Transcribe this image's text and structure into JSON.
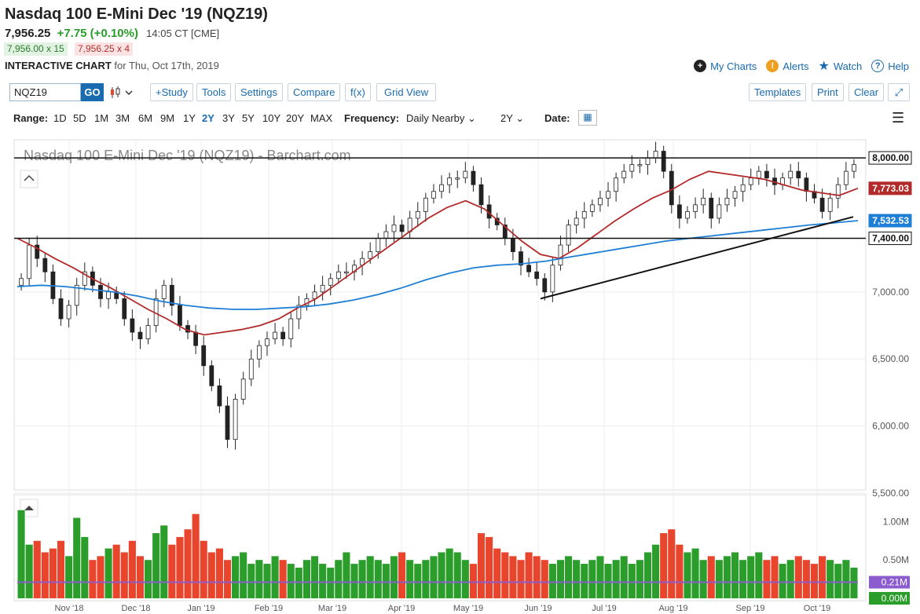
{
  "header": {
    "title": "Nasdaq 100 E-Mini Dec '19 (NQZ19)",
    "last": "7,956.25",
    "change": "+7.75 (+0.10%)",
    "time": "14:05 CT [CME]",
    "bid": "7,956.00 x 15",
    "ask": "7,956.25 x 4",
    "interactive_label": "INTERACTIVE CHART",
    "interactive_date": "for Thu, Oct 17th, 2019"
  },
  "toplinks": {
    "my_charts": "My Charts",
    "alerts": "Alerts",
    "watch": "Watch",
    "help": "Help"
  },
  "toolbar": {
    "symbol_value": "NQZ19",
    "go": "GO",
    "study": "+Study",
    "tools": "Tools",
    "settings": "Settings",
    "compare": "Compare",
    "fx": "f(x)",
    "grid_view": "Grid View",
    "templates": "Templates",
    "print": "Print",
    "clear": "Clear"
  },
  "rangebar": {
    "range_label": "Range:",
    "ranges": [
      "1D",
      "5D",
      "1M",
      "3M",
      "6M",
      "9M",
      "1Y",
      "2Y",
      "3Y",
      "5Y",
      "10Y",
      "20Y",
      "MAX"
    ],
    "active_range": "2Y",
    "frequency_label": "Frequency:",
    "frequency_value": "Daily Nearby",
    "period_value": "2Y",
    "date_label": "Date:"
  },
  "colors": {
    "up": "#2a9d2a",
    "down": "#e8452c",
    "ma_red": "#b22a2a",
    "ma_blue": "#1f7fd6",
    "vol_avg": "#8c5ccf",
    "link": "#1a6bb0"
  },
  "chart_data": {
    "type": "candlestick",
    "title": "Nasdaq 100 E-Mini Dec '19 (NQZ19) - Barchart.com",
    "price_axis": {
      "ylim": [
        5500,
        8100
      ],
      "ticks": [
        "8,000.00",
        "7,000.00",
        "6,500.00",
        "6,000.00",
        "5,500.00"
      ]
    },
    "x_labels": [
      "Nov '18",
      "Dec '18",
      "Jan '19",
      "Feb '19",
      "Mar '19",
      "Apr '19",
      "May '19",
      "Jun '19",
      "Jul '19",
      "Aug '19",
      "Sep '19",
      "Oct '19"
    ],
    "price_tags": [
      {
        "label": "8,000.00",
        "value": 8000,
        "style": "resistance"
      },
      {
        "label": "7,773.03",
        "value": 7773,
        "style": "ma_red"
      },
      {
        "label": "7,532.53",
        "value": 7532,
        "style": "ma_blue"
      },
      {
        "label": "7,400.00",
        "value": 7400,
        "style": "support"
      }
    ],
    "close_approx": [
      7100,
      7350,
      7250,
      7150,
      6950,
      6800,
      6900,
      7050,
      7150,
      7050,
      6950,
      7000,
      6950,
      6800,
      6700,
      6650,
      6750,
      6950,
      7050,
      6900,
      6750,
      6700,
      6600,
      6450,
      6300,
      6150,
      5900,
      6200,
      6350,
      6500,
      6600,
      6650,
      6700,
      6650,
      6800,
      6900,
      6950,
      7000,
      7050,
      7100,
      7150,
      7150,
      7200,
      7250,
      7300,
      7400,
      7450,
      7500,
      7450,
      7550,
      7600,
      7700,
      7750,
      7800,
      7850,
      7850,
      7900,
      7800,
      7650,
      7550,
      7500,
      7400,
      7300,
      7200,
      7150,
      7100,
      7000,
      7200,
      7350,
      7500,
      7550,
      7600,
      7650,
      7700,
      7750,
      7850,
      7900,
      7950,
      7950,
      8000,
      8050,
      7900,
      7650,
      7550,
      7600,
      7650,
      7700,
      7550,
      7650,
      7700,
      7750,
      7800,
      7850,
      7900,
      7850,
      7800,
      7850,
      7900,
      7850,
      7750,
      7700,
      7600,
      7700,
      7800,
      7900,
      7950
    ],
    "ma_red_approx": [
      7400,
      7330,
      7250,
      7180,
      7100,
      7030,
      6950,
      6870,
      6800,
      6720,
      6680,
      6700,
      6720,
      6750,
      6800,
      6880,
      6950,
      7050,
      7150,
      7250,
      7350,
      7450,
      7550,
      7630,
      7680,
      7620,
      7500,
      7380,
      7280,
      7250,
      7330,
      7430,
      7530,
      7620,
      7700,
      7760,
      7840,
      7900,
      7880,
      7860,
      7840,
      7800,
      7760,
      7740,
      7720,
      7773
    ],
    "ma_blue_approx": [
      7040,
      7050,
      7040,
      7020,
      7000,
      6970,
      6930,
      6900,
      6880,
      6870,
      6870,
      6880,
      6890,
      6910,
      6940,
      6980,
      7030,
      7090,
      7140,
      7180,
      7200,
      7210,
      7230,
      7260,
      7290,
      7320,
      7350,
      7380,
      7400,
      7420,
      7440,
      7460,
      7480,
      7500,
      7515,
      7532
    ],
    "volume_axis": {
      "ticks": [
        "1.00M",
        "0.50M",
        "0.21M",
        "0.00M"
      ]
    },
    "volume_approx": [
      1.15,
      0.7,
      0.75,
      0.6,
      0.65,
      0.75,
      0.55,
      1.05,
      0.8,
      0.5,
      0.55,
      0.65,
      0.7,
      0.6,
      0.75,
      0.55,
      0.5,
      0.85,
      0.95,
      0.7,
      0.8,
      0.9,
      1.1,
      0.75,
      0.6,
      0.65,
      0.5,
      0.55,
      0.6,
      0.45,
      0.5,
      0.45,
      0.55,
      0.5,
      0.45,
      0.4,
      0.5,
      0.55,
      0.45,
      0.4,
      0.5,
      0.6,
      0.45,
      0.5,
      0.55,
      0.5,
      0.45,
      0.55,
      0.6,
      0.5,
      0.45,
      0.5,
      0.55,
      0.6,
      0.65,
      0.6,
      0.5,
      0.45,
      0.85,
      0.8,
      0.65,
      0.6,
      0.55,
      0.5,
      0.6,
      0.55,
      0.5,
      0.45,
      0.5,
      0.55,
      0.5,
      0.45,
      0.5,
      0.55,
      0.45,
      0.5,
      0.55,
      0.45,
      0.5,
      0.6,
      0.7,
      0.85,
      0.9,
      0.7,
      0.6,
      0.65,
      0.5,
      0.55,
      0.5,
      0.55,
      0.6,
      0.5,
      0.55,
      0.6,
      0.5,
      0.55,
      0.45,
      0.5,
      0.55,
      0.5,
      0.45,
      0.55,
      0.5,
      0.45,
      0.5,
      0.4
    ]
  }
}
